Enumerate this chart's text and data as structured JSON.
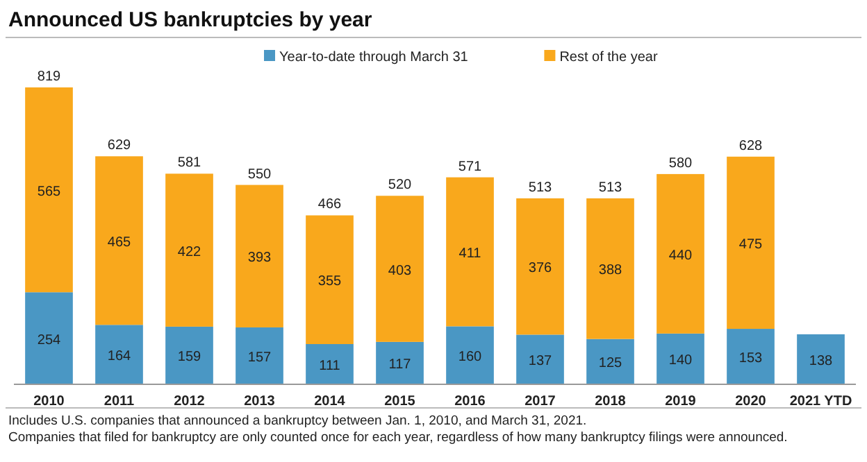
{
  "chart_data": {
    "type": "bar",
    "title": "Announced US bankruptcies by year",
    "categories": [
      "2010",
      "2011",
      "2012",
      "2013",
      "2014",
      "2015",
      "2016",
      "2017",
      "2018",
      "2019",
      "2020",
      "2021 YTD"
    ],
    "stacked": true,
    "data_labels": true,
    "legend": "top",
    "series": [
      {
        "name": "Year-to-date through March 31",
        "color": "#4a97c4",
        "values": [
          254,
          164,
          159,
          157,
          111,
          117,
          160,
          137,
          125,
          140,
          153,
          138
        ]
      },
      {
        "name": "Rest of the year",
        "color": "#f9a81c",
        "values": [
          565,
          465,
          422,
          393,
          355,
          403,
          411,
          376,
          388,
          440,
          475,
          null
        ]
      }
    ],
    "totals": [
      "819",
      "629",
      "581",
      "550",
      "466",
      "520",
      "571",
      "513",
      "513",
      "580",
      "628",
      null
    ],
    "annotations": [
      "Includes U.S. companies that announced a bankruptcy between Jan. 1, 2010, and March 31, 2021.",
      "Companies that filed for bankruptcy are only counted once for each year, regardless of how many bankruptcy filings were announced."
    ]
  }
}
